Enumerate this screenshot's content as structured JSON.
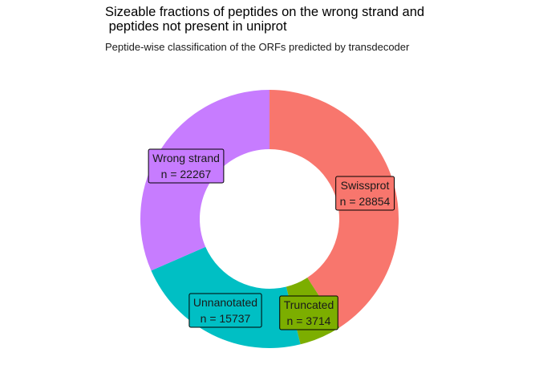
{
  "chart_data": {
    "type": "pie",
    "style": "donut",
    "title": "Sizeable fractions of peptides on the wrong strand and\n peptides not present in uniprot",
    "subtitle": "Peptide-wise classification of the ORFs predicted by transdecoder",
    "slices": [
      {
        "label": "Swissprot",
        "n_text": "n = 28854",
        "value": 28854,
        "color": "#F8766D"
      },
      {
        "label": "Truncated",
        "n_text": "n = 3714",
        "value": 3714,
        "color": "#7CAE00"
      },
      {
        "label": "Unnanotated",
        "n_text": "n = 15737",
        "value": 15737,
        "color": "#00BFC4"
      },
      {
        "label": "Wrong strand",
        "n_text": "n = 22267",
        "value": 22267,
        "color": "#C77CFF"
      }
    ],
    "legend": "none"
  }
}
